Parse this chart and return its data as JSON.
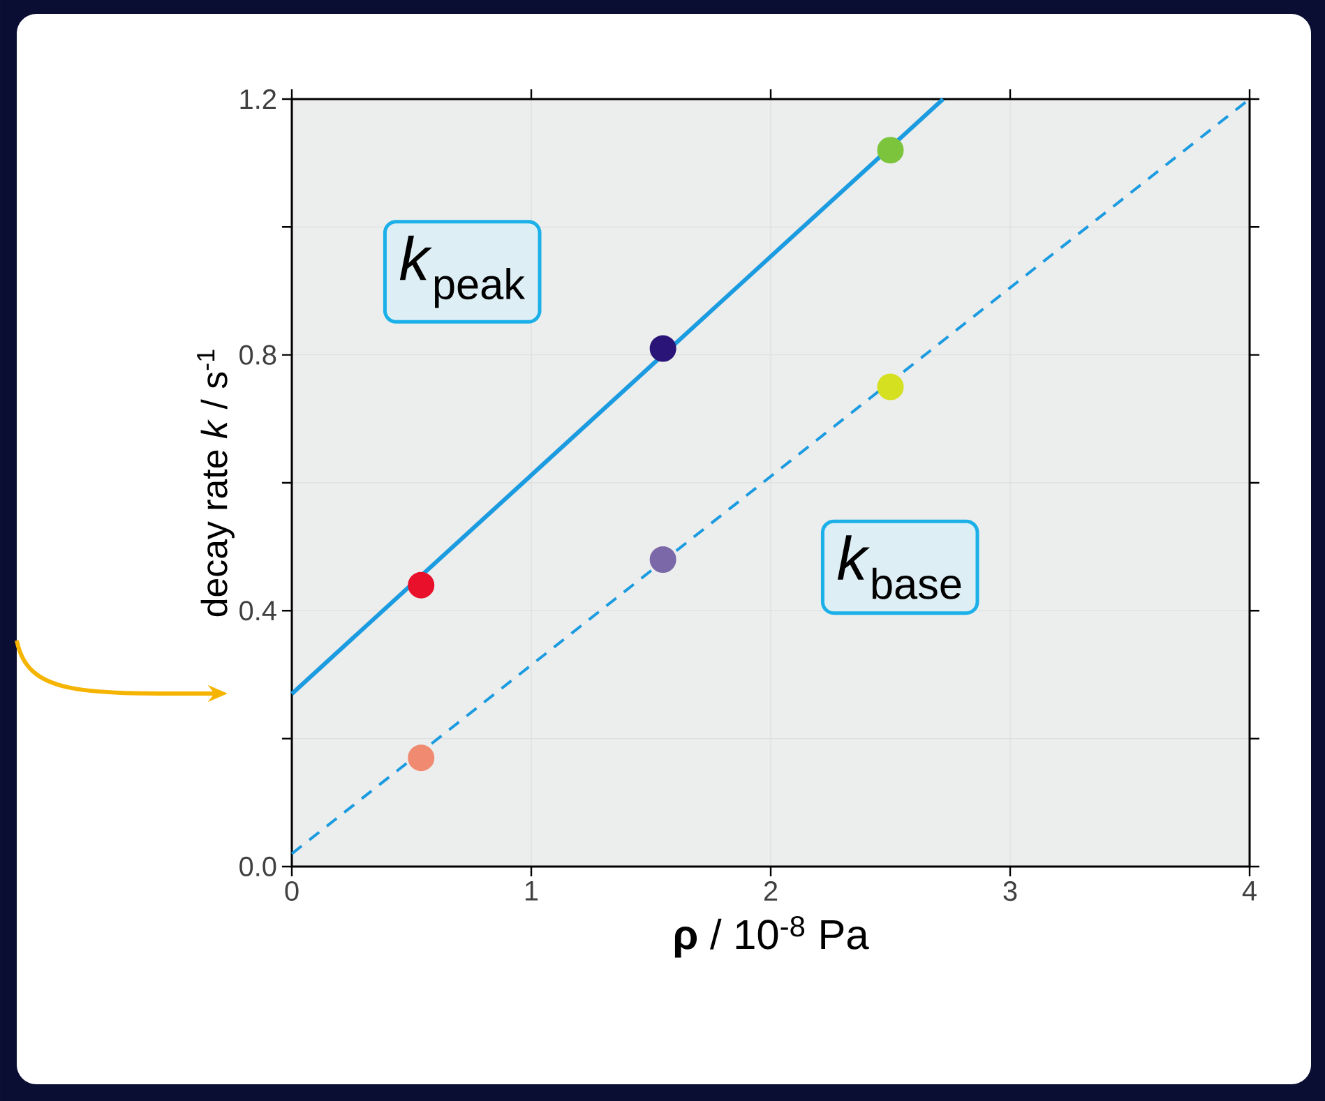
{
  "chart_data": {
    "type": "scatter",
    "xlabel": "**ρ** / 10$^{-8}$ Pa",
    "ylabel": "decay rate *k* / s$^{-1}$",
    "xlim": [
      0,
      4
    ],
    "ylim": [
      0,
      1.2
    ],
    "xticks": [
      0,
      1,
      2,
      3,
      4
    ],
    "yticks": [
      {
        "value": 0,
        "label": "0.0"
      },
      {
        "value": 0.2,
        "label": null
      },
      {
        "value": 0.4,
        "label": "0.4"
      },
      {
        "value": 0.6,
        "label": null
      },
      {
        "value": 0.8,
        "label": "0.8"
      },
      {
        "value": 1.0,
        "label": null
      },
      {
        "value": 1.2,
        "label": "1.2"
      }
    ],
    "grid": true,
    "series": [
      {
        "marker": "circle",
        "x": [
          0.54,
          1.55,
          2.5
        ],
        "values": [
          0.44,
          0.81,
          1.12
        ],
        "colors": [
          "#e8102a",
          "#2a1478",
          "#7cc43c"
        ]
      },
      {
        "marker": "circle",
        "x": [
          0.54,
          1.55,
          2.5
        ],
        "values": [
          0.17,
          0.48,
          0.75
        ],
        "colors": [
          "#f08a70",
          "#7a68a8",
          "#d4e020"
        ]
      },
      {
        "type": "line",
        "x": [
          0,
          2.72
        ],
        "values": [
          0.27,
          1.2
        ],
        "color": "#1b9be0",
        "line_style": "solid"
      },
      {
        "type": "line",
        "x": [
          0,
          4
        ],
        "values": [
          0.02,
          1.2
        ],
        "color": "#1b9be0",
        "line_style": "dashed"
      }
    ],
    "annotations": [
      "*k*$_{peak}$",
      "*k*$_{base}$"
    ]
  }
}
